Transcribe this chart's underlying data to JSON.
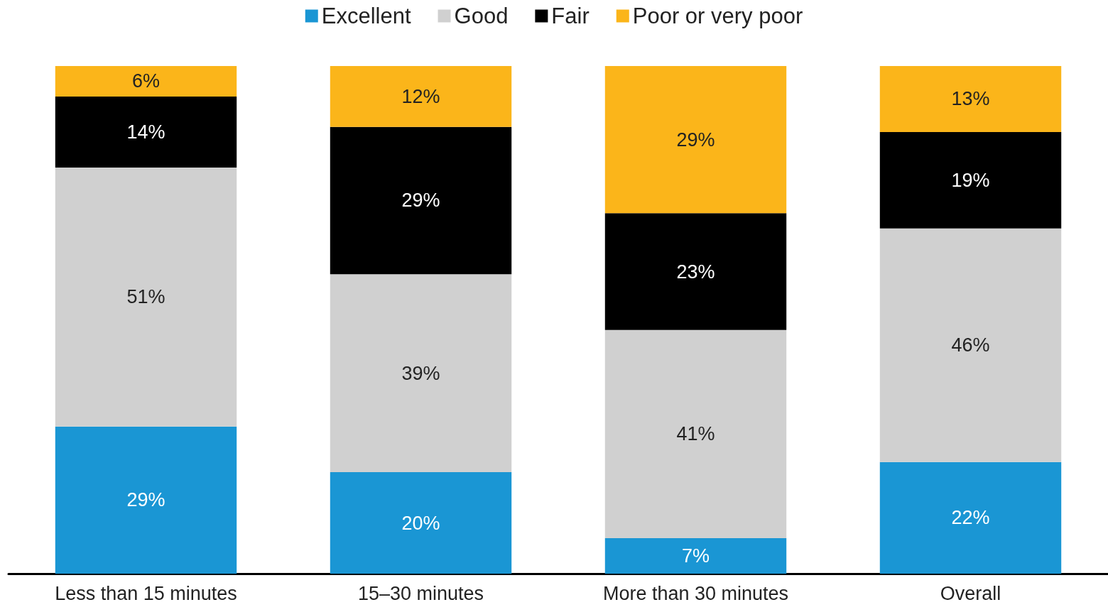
{
  "chart_data": {
    "type": "bar",
    "stacked": true,
    "categories": [
      "Less than 15 minutes",
      "15–30 minutes",
      "More than 30 minutes",
      "Overall"
    ],
    "series": [
      {
        "name": "Excellent",
        "color": "#1a96d4",
        "values": [
          29,
          20,
          7,
          22
        ],
        "value_labels": [
          "29%",
          "20%",
          "7%",
          "22%"
        ]
      },
      {
        "name": "Good",
        "color": "#d0d0d0",
        "values": [
          51,
          39,
          41,
          46
        ],
        "value_labels": [
          "51%",
          "39%",
          "41%",
          "46%"
        ]
      },
      {
        "name": "Fair",
        "color": "#000000",
        "values": [
          14,
          29,
          23,
          19
        ],
        "value_labels": [
          "14%",
          "29%",
          "23%",
          "19%"
        ]
      },
      {
        "name": "Poor or very poor",
        "color": "#fbb51a",
        "values": [
          6,
          12,
          29,
          13
        ],
        "value_labels": [
          "6%",
          "12%",
          "29%",
          "13%"
        ]
      }
    ],
    "tick_labels": "x",
    "legend": "top"
  }
}
